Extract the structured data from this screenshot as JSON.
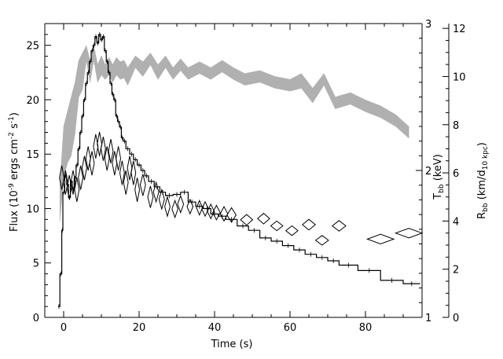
{
  "chart_data": {
    "type": "line",
    "xlabel": "Time (s)",
    "ylabel_left": {
      "main": "Flux (10",
      "exp": "-9",
      "rest": " ergs cm",
      "exp2": "-2",
      "rest2": " s",
      "exp3": "-1",
      "close": ")"
    },
    "ylabel_t": {
      "main": "T",
      "sub": "bb",
      "rest": " (keV)"
    },
    "ylabel_r": {
      "main": "R",
      "sub": "bb",
      "rest": " (km/d",
      "sub2": "10 kpc",
      "close": ")"
    },
    "xlim": [
      -5,
      95
    ],
    "ylim_flux": [
      0,
      27
    ],
    "ylim_kT": [
      1,
      3
    ],
    "ylim_R": [
      0,
      12.2
    ],
    "x_ticks": [
      "0",
      "20",
      "40",
      "60",
      "80"
    ],
    "x_tick_values": [
      0,
      20,
      40,
      60,
      80
    ],
    "flux_ticks": [
      "0",
      "5",
      "10",
      "15",
      "20",
      "25"
    ],
    "flux_tick_values": [
      0,
      5,
      10,
      15,
      20,
      25
    ],
    "kT_ticks": [
      "1",
      "2",
      "3"
    ],
    "kT_tick_values": [
      1,
      2,
      3
    ],
    "R_ticks": [
      "0",
      "2",
      "4",
      "6",
      "8",
      "10",
      "12"
    ],
    "R_tick_values": [
      0,
      2,
      4,
      6,
      8,
      10,
      12
    ],
    "grid": false,
    "series": [
      {
        "role": "flux",
        "style": "step",
        "color": "#000000",
        "points": [
          [
            -1.5,
            1.0
          ],
          [
            -1.0,
            4.0
          ],
          [
            -0.5,
            8.0
          ],
          [
            -0.2,
            11.5
          ],
          [
            0.3,
            13.0
          ],
          [
            0.8,
            12.2
          ],
          [
            1.3,
            11.0
          ],
          [
            1.8,
            12.5
          ],
          [
            2.3,
            11.8
          ],
          [
            2.8,
            12.8
          ],
          [
            3.3,
            14.0
          ],
          [
            3.8,
            15.5
          ],
          [
            4.3,
            17.0
          ],
          [
            4.8,
            18.5
          ],
          [
            5.3,
            20.0
          ],
          [
            5.8,
            21.5
          ],
          [
            6.3,
            22.5
          ],
          [
            6.8,
            23.5
          ],
          [
            7.3,
            24.5
          ],
          [
            7.8,
            25.0
          ],
          [
            8.3,
            25.8
          ],
          [
            8.8,
            25.2
          ],
          [
            9.3,
            26.0
          ],
          [
            9.8,
            25.5
          ],
          [
            10.3,
            25.8
          ],
          [
            10.8,
            24.5
          ],
          [
            11.3,
            23.5
          ],
          [
            11.8,
            22.5
          ],
          [
            12.3,
            21.5
          ],
          [
            12.8,
            20.5
          ],
          [
            13.3,
            20.0
          ],
          [
            13.8,
            18.5
          ],
          [
            14.3,
            18.0
          ],
          [
            14.8,
            17.5
          ],
          [
            15.3,
            16.5
          ],
          [
            15.8,
            16.2
          ],
          [
            16.5,
            15.5
          ],
          [
            17.5,
            15.0
          ],
          [
            18.5,
            14.5
          ],
          [
            19.5,
            14.0
          ],
          [
            20.5,
            13.5
          ],
          [
            21.5,
            13.0
          ],
          [
            22.5,
            12.5
          ],
          [
            24.0,
            12.0
          ],
          [
            25.5,
            11.5
          ],
          [
            27.0,
            11.2
          ],
          [
            29.0,
            11.3
          ],
          [
            31.0,
            11.5
          ],
          [
            33.0,
            10.6
          ],
          [
            35.0,
            10.2
          ],
          [
            37.0,
            10.0
          ],
          [
            39.0,
            9.5
          ],
          [
            41.0,
            9.3
          ],
          [
            43.0,
            9.0
          ],
          [
            46.0,
            8.4
          ],
          [
            49.0,
            8.0
          ],
          [
            52.0,
            7.3
          ],
          [
            55.0,
            7.0
          ],
          [
            58.0,
            6.6
          ],
          [
            61.0,
            6.2
          ],
          [
            64.0,
            5.8
          ],
          [
            67.0,
            5.5
          ],
          [
            70.0,
            5.2
          ],
          [
            73.0,
            4.8
          ],
          [
            78.0,
            4.3
          ],
          [
            84.0,
            3.4
          ],
          [
            90.0,
            3.1
          ],
          [
            94.5,
            3.1
          ]
        ]
      },
      {
        "role": "kT",
        "style": "band",
        "color": "#b0b0b0",
        "points": [
          [
            -1.0,
            1.65,
            1.9
          ],
          [
            0.0,
            1.95,
            2.3
          ],
          [
            1.0,
            2.05,
            2.4
          ],
          [
            2.0,
            2.1,
            2.5
          ],
          [
            3.0,
            2.25,
            2.6
          ],
          [
            4.0,
            2.5,
            2.75
          ],
          [
            5.0,
            2.55,
            2.8
          ],
          [
            6.0,
            2.75,
            2.85
          ],
          [
            7.0,
            2.6,
            2.75
          ],
          [
            8.0,
            2.75,
            2.85
          ],
          [
            9.0,
            2.6,
            2.72
          ],
          [
            10.0,
            2.65,
            2.78
          ],
          [
            11.0,
            2.62,
            2.72
          ],
          [
            12.0,
            2.65,
            2.77
          ],
          [
            13.0,
            2.6,
            2.72
          ],
          [
            14.0,
            2.65,
            2.77
          ],
          [
            15.0,
            2.62,
            2.74
          ],
          [
            16.0,
            2.63,
            2.75
          ],
          [
            17.0,
            2.58,
            2.7
          ],
          [
            19.0,
            2.7,
            2.78
          ],
          [
            21.0,
            2.64,
            2.74
          ],
          [
            23.0,
            2.72,
            2.8
          ],
          [
            25.0,
            2.62,
            2.72
          ],
          [
            27.0,
            2.7,
            2.78
          ],
          [
            29.0,
            2.62,
            2.7
          ],
          [
            31.0,
            2.68,
            2.76
          ],
          [
            33.0,
            2.62,
            2.7
          ],
          [
            36.0,
            2.66,
            2.74
          ],
          [
            39.0,
            2.62,
            2.7
          ],
          [
            42.0,
            2.67,
            2.75
          ],
          [
            45.0,
            2.62,
            2.7
          ],
          [
            48.0,
            2.58,
            2.66
          ],
          [
            52.0,
            2.6,
            2.68
          ],
          [
            56.0,
            2.56,
            2.64
          ],
          [
            60.0,
            2.54,
            2.62
          ],
          [
            63.0,
            2.56,
            2.66
          ],
          [
            66.0,
            2.46,
            2.56
          ],
          [
            69.0,
            2.58,
            2.66
          ],
          [
            72.0,
            2.42,
            2.5
          ],
          [
            76.0,
            2.45,
            2.53
          ],
          [
            80.0,
            2.4,
            2.48
          ],
          [
            84.0,
            2.36,
            2.44
          ],
          [
            88.0,
            2.3,
            2.38
          ],
          [
            91.5,
            2.22,
            2.3
          ]
        ]
      },
      {
        "role": "radius",
        "style": "diamond",
        "color": "#000000",
        "points": [
          [
            -0.5,
            5.8,
            0.6,
            0.5
          ],
          [
            0.5,
            5.6,
            0.6,
            0.5
          ],
          [
            1.5,
            5.4,
            0.6,
            0.5
          ],
          [
            2.5,
            5.6,
            0.6,
            0.5
          ],
          [
            3.5,
            5.3,
            0.6,
            0.5
          ],
          [
            4.5,
            5.8,
            0.6,
            0.5
          ],
          [
            5.5,
            6.2,
            0.6,
            0.5
          ],
          [
            6.5,
            6.6,
            0.6,
            0.5
          ],
          [
            7.5,
            6.4,
            0.6,
            0.5
          ],
          [
            8.5,
            7.1,
            0.6,
            0.5
          ],
          [
            9.5,
            7.2,
            0.6,
            0.5
          ],
          [
            10.5,
            7.0,
            0.6,
            0.5
          ],
          [
            11.5,
            6.6,
            0.6,
            0.5
          ],
          [
            12.5,
            6.9,
            0.6,
            0.5
          ],
          [
            13.5,
            6.4,
            0.6,
            0.5
          ],
          [
            14.5,
            6.6,
            0.6,
            0.5
          ],
          [
            15.5,
            6.0,
            0.6,
            0.5
          ],
          [
            16.5,
            5.6,
            0.6,
            0.5
          ],
          [
            17.5,
            6.2,
            0.6,
            0.5
          ],
          [
            18.5,
            6.0,
            0.6,
            0.5
          ],
          [
            19.5,
            5.3,
            0.6,
            0.5
          ],
          [
            21.0,
            5.5,
            0.7,
            0.45
          ],
          [
            23.0,
            5.0,
            0.7,
            0.45
          ],
          [
            24.5,
            5.2,
            0.7,
            0.4
          ],
          [
            26.0,
            4.9,
            0.7,
            0.4
          ],
          [
            27.5,
            4.6,
            0.7,
            0.4
          ],
          [
            29.5,
            4.5,
            0.8,
            0.35
          ],
          [
            31.0,
            4.7,
            0.8,
            0.35
          ],
          [
            33.5,
            4.6,
            0.8,
            0.3
          ],
          [
            36.0,
            4.55,
            0.8,
            0.3
          ],
          [
            37.5,
            4.5,
            0.9,
            0.3
          ],
          [
            39.0,
            4.4,
            0.9,
            0.3
          ],
          [
            40.5,
            4.35,
            1.0,
            0.3
          ],
          [
            42.5,
            4.3,
            1.0,
            0.3
          ],
          [
            44.5,
            4.25,
            1.2,
            0.3
          ],
          [
            48.5,
            4.05,
            1.6,
            0.22
          ],
          [
            53.0,
            4.1,
            1.6,
            0.22
          ],
          [
            56.5,
            3.8,
            1.6,
            0.2
          ],
          [
            60.5,
            3.6,
            1.6,
            0.2
          ],
          [
            65.0,
            3.85,
            1.7,
            0.22
          ],
          [
            68.5,
            3.2,
            1.7,
            0.2
          ],
          [
            73.0,
            3.8,
            1.8,
            0.22
          ],
          [
            84.0,
            3.25,
            3.5,
            0.2
          ],
          [
            91.5,
            3.5,
            3.5,
            0.2
          ]
        ]
      }
    ]
  }
}
